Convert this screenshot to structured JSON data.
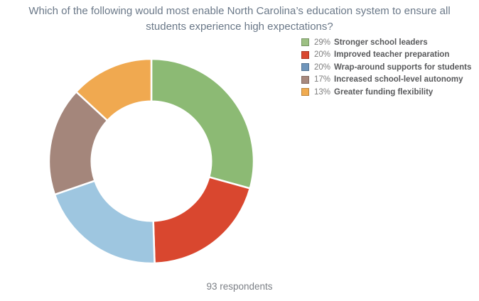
{
  "chart_data": {
    "type": "pie",
    "style": "donut",
    "title": "Which of the following would most enable North Carolina’s education system to ensure all students experience high expectations?",
    "legend_position": "top-right",
    "start_angle_deg": 0,
    "direction": "clockwise",
    "inner_radius_ratio": 0.585,
    "slice_gap_color": "#ffffff",
    "slices": [
      {
        "pct": 29,
        "label": "Stronger school leaders",
        "color": "#8cba74",
        "legend_color": "#9cc083"
      },
      {
        "pct": 20,
        "label": "Improved teacher preparation",
        "color": "#d9472f",
        "legend_color": "#d9472f"
      },
      {
        "pct": 20,
        "label": "Wrap-around supports for students",
        "color": "#9ec6e0",
        "legend_color": "#6f95bb"
      },
      {
        "pct": 17,
        "label": "Increased school-level autonomy",
        "color": "#a4867b",
        "legend_color": "#a8897e"
      },
      {
        "pct": 13,
        "label": "Greater funding flexibility",
        "color": "#f0a950",
        "legend_color": "#f0ab50"
      }
    ],
    "footer_note": "93 respondents"
  },
  "colors": {
    "title_text": "#6a7888",
    "legend_percent_text": "#7e7e7e",
    "legend_label_text": "#58595b",
    "footer_text": "#7b7f85",
    "background": "#ffffff"
  }
}
